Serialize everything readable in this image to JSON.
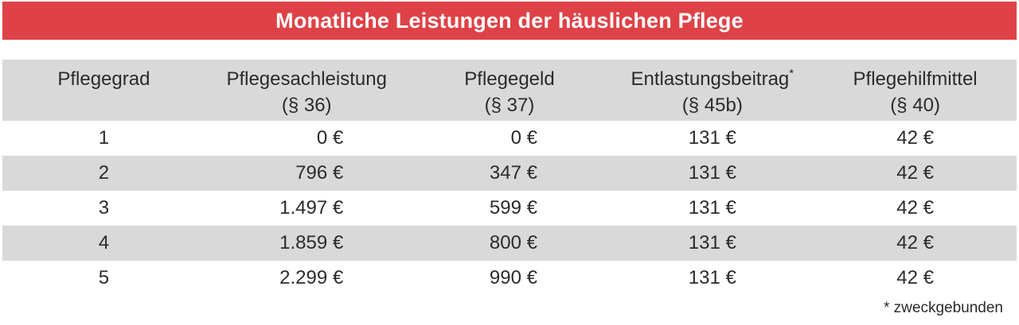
{
  "banner": {
    "title": "Monatliche Leistungen der häuslichen Pflege"
  },
  "chart_data": {
    "type": "table",
    "title": "Monatliche Leistungen der häuslichen Pflege",
    "columns": [
      {
        "name": "Pflegegrad",
        "sup": "",
        "sub": ""
      },
      {
        "name": "Pflegesachleistung",
        "sup": "",
        "sub": "(§ 36)"
      },
      {
        "name": "Pflegegeld",
        "sup": "",
        "sub": "(§ 37)"
      },
      {
        "name": "Entlastungsbeitrag",
        "sup": "*",
        "sub": "(§ 45b)"
      },
      {
        "name": "Pflegehilfmittel",
        "sup": "",
        "sub": "(§ 40)"
      }
    ],
    "rows": [
      [
        "1",
        "0 €",
        "0 €",
        "131 €",
        "42 €"
      ],
      [
        "2",
        "796 €",
        "347 €",
        "131 €",
        "42 €"
      ],
      [
        "3",
        "1.497 €",
        "599 €",
        "131 €",
        "42 €"
      ],
      [
        "4",
        "1.859 €",
        "800 €",
        "131 €",
        "42 €"
      ],
      [
        "5",
        "2.299 €",
        "990 €",
        "131 €",
        "42 €"
      ]
    ],
    "footnote": "* zweckgebunden",
    "layout": {
      "zebra_striping": true,
      "striped_rows": [
        "header",
        "2",
        "4"
      ],
      "numeric_alignment": {
        "Pflegesachleistung": "right",
        "Pflegegeld": "right",
        "Entlastungsbeitrag": "center",
        "Pflegehilfmittel": "center",
        "Pflegegrad": "center"
      }
    }
  },
  "colors": {
    "banner_red": "#de4247",
    "stripe_gray": "#d9d9d9",
    "text_dark": "#2b2b2b",
    "title_white": "#ffffff"
  }
}
